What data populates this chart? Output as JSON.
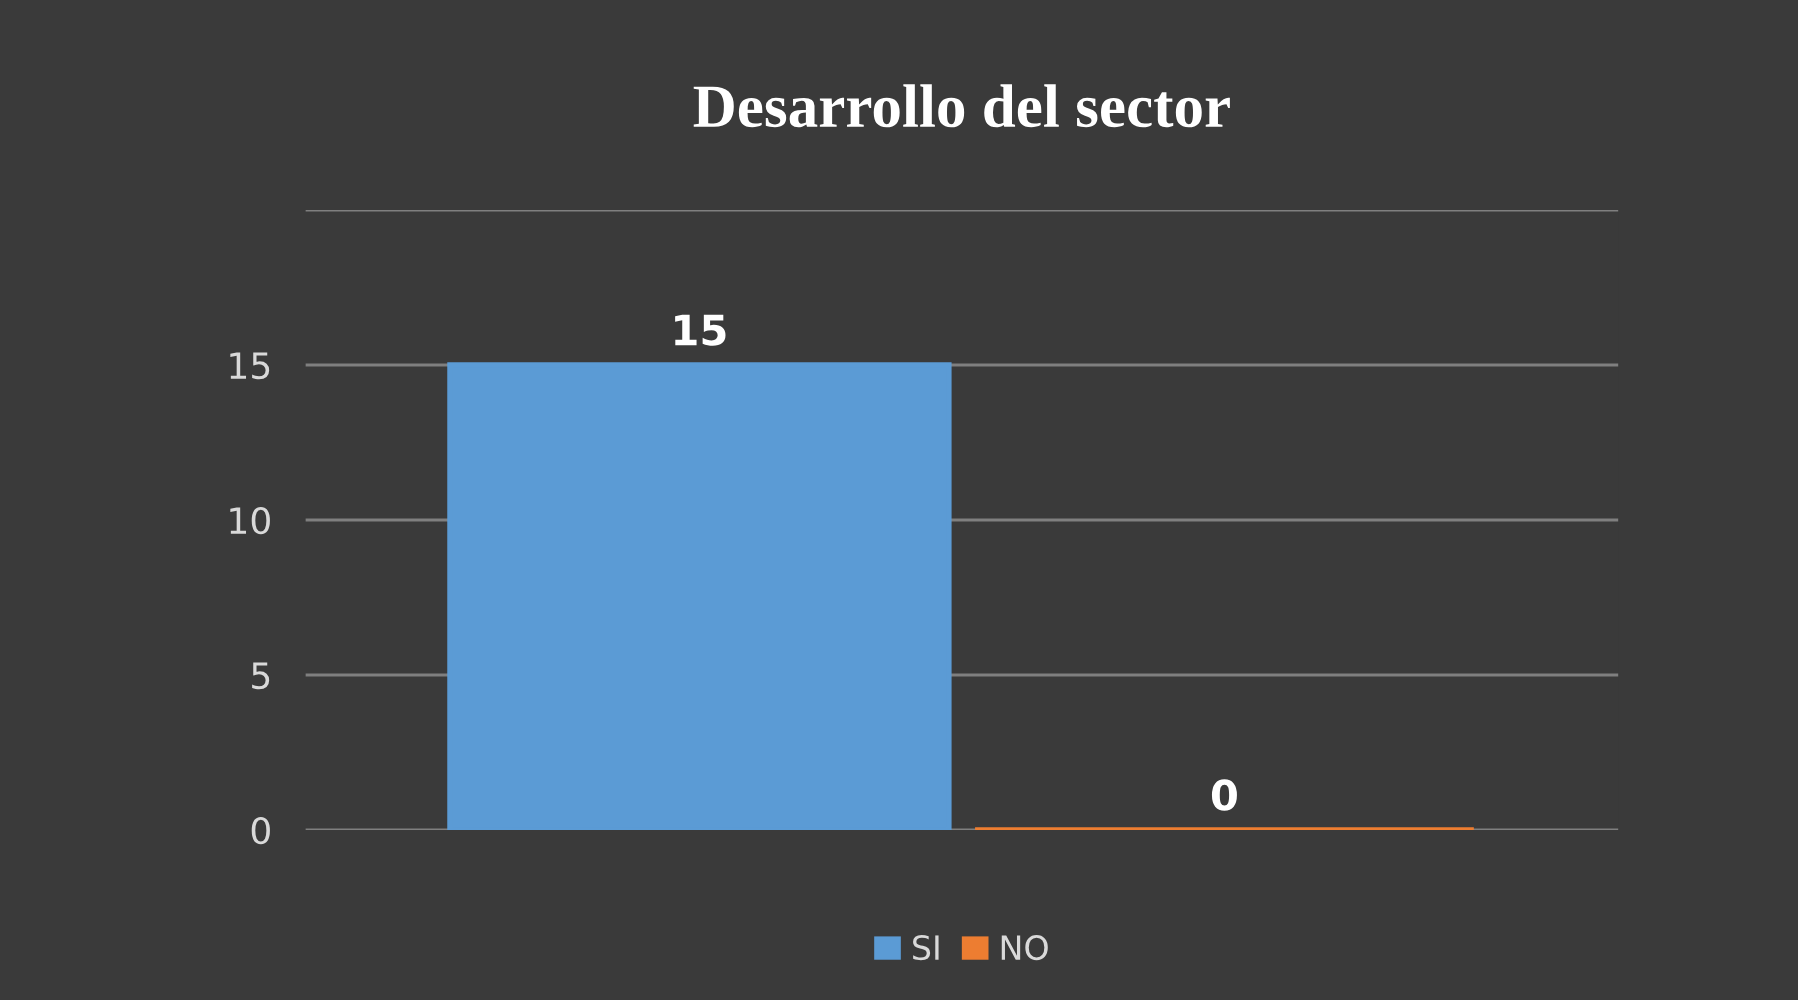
{
  "chart_data": {
    "type": "bar",
    "title": "Desarrollo del sector",
    "categories": [
      null
    ],
    "series": [
      {
        "name": "SI",
        "color": "#5b9bd5",
        "values": [
          15
        ]
      },
      {
        "name": "NO",
        "color": "#ed7d31",
        "values": [
          0
        ]
      }
    ],
    "ylim": [
      0,
      20
    ],
    "yticks": [
      0,
      5,
      10,
      15,
      {
        "value": 20,
        "label": null
      }
    ],
    "grid": "y",
    "legend": "bottom",
    "data_labels": true
  }
}
